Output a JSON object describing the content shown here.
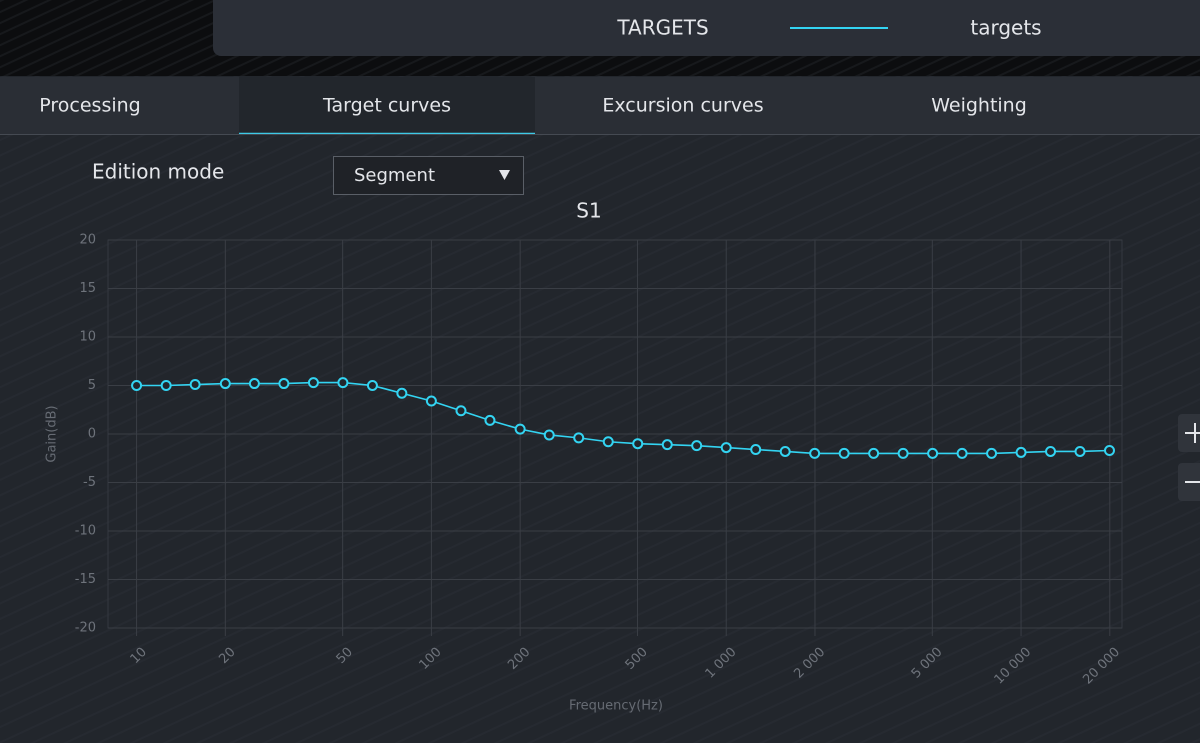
{
  "header": {
    "title": "TARGETS"
  },
  "tabs": [
    {
      "label": "Processing",
      "active": false
    },
    {
      "label": "Target curves",
      "active": true
    },
    {
      "label": "Excursion curves",
      "active": false
    },
    {
      "label": "Weighting",
      "active": false
    }
  ],
  "edition_mode": {
    "label": "Edition mode",
    "value": "Segment"
  },
  "chart_data": {
    "type": "line",
    "title": "S1",
    "xlabel": "Frequency(Hz)",
    "ylabel": "Gain(dB)",
    "xscale": "log",
    "grid": true,
    "x": [
      10,
      12.6,
      15.8,
      20,
      25.1,
      31.6,
      39.8,
      50.1,
      63.1,
      79.4,
      100,
      126,
      158,
      200,
      251,
      316,
      398,
      501,
      631,
      794,
      1000,
      1259,
      1585,
      1995,
      2512,
      3162,
      3981,
      5012,
      6310,
      7943,
      10000,
      12589,
      15849,
      19953
    ],
    "series": [
      {
        "name": "targets",
        "color": "#33d4f2",
        "values": [
          5.0,
          5.0,
          5.1,
          5.2,
          5.2,
          5.2,
          5.3,
          5.3,
          5.0,
          4.2,
          3.4,
          2.4,
          1.4,
          0.5,
          -0.1,
          -0.4,
          -0.8,
          -1.0,
          -1.1,
          -1.2,
          -1.4,
          -1.6,
          -1.8,
          -2.0,
          -2.0,
          -2.0,
          -2.0,
          -2.0,
          -2.0,
          -2.0,
          -1.9,
          -1.8,
          -1.8,
          -1.7
        ]
      }
    ],
    "xlim": [
      8,
      22000
    ],
    "ylim": [
      -20,
      20
    ],
    "xticks": [
      10,
      20,
      50,
      100,
      200,
      500,
      {
        "value": 1000,
        "label": "1 000"
      },
      {
        "value": 2000,
        "label": "2 000"
      },
      {
        "value": 5000,
        "label": "5 000"
      },
      {
        "value": 10000,
        "label": "10 000"
      },
      {
        "value": 20000,
        "label": "20 000"
      }
    ],
    "yticks": [
      20,
      15,
      10,
      5,
      0,
      -5,
      -10,
      -15,
      -20
    ]
  }
}
